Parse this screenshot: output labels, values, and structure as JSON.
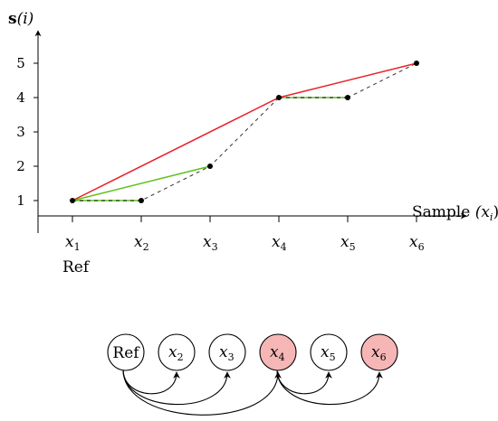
{
  "chart_data": {
    "type": "line",
    "ylabel_main": "s",
    "ylabel_paren": "(i)",
    "xlabel": "Sample",
    "xlabel_var": "(x",
    "xlabel_sub": "i",
    "xlabel_close": ")",
    "x_ticks": [
      {
        "base": "x",
        "sub": "1"
      },
      {
        "base": "x",
        "sub": "2"
      },
      {
        "base": "x",
        "sub": "3"
      },
      {
        "base": "x",
        "sub": "4"
      },
      {
        "base": "x",
        "sub": "5"
      },
      {
        "base": "x",
        "sub": "6"
      }
    ],
    "y_ticks": [
      "1",
      "2",
      "3",
      "4",
      "5"
    ],
    "ref_label": "Ref",
    "points": [
      {
        "x": 1,
        "y": 1
      },
      {
        "x": 2,
        "y": 1
      },
      {
        "x": 3,
        "y": 2
      },
      {
        "x": 4,
        "y": 4
      },
      {
        "x": 5,
        "y": 4
      },
      {
        "x": 6,
        "y": 5
      }
    ],
    "dashed_path": [
      1,
      2,
      3,
      4,
      5,
      6
    ],
    "red_path": [
      1,
      4,
      6
    ],
    "green_segments": [
      [
        1,
        2
      ],
      [
        1,
        3
      ],
      [
        4,
        5
      ]
    ],
    "colors": {
      "red": "#e8232a",
      "green": "#5cc21a",
      "dashed": "#333333",
      "highlight": "#f6b6b6"
    }
  },
  "graph": {
    "nodes": [
      {
        "label": "Ref",
        "highlight": false
      },
      {
        "label": "x",
        "sub": "2",
        "highlight": false
      },
      {
        "label": "x",
        "sub": "3",
        "highlight": false
      },
      {
        "label": "x",
        "sub": "4",
        "highlight": true
      },
      {
        "label": "x",
        "sub": "5",
        "highlight": false
      },
      {
        "label": "x",
        "sub": "6",
        "highlight": true
      }
    ],
    "edges": [
      [
        0,
        1
      ],
      [
        0,
        2
      ],
      [
        0,
        3
      ],
      [
        3,
        4
      ],
      [
        3,
        5
      ]
    ]
  }
}
